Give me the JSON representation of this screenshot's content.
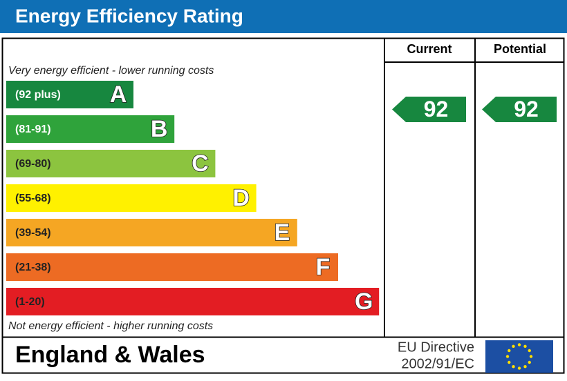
{
  "title": "Energy Efficiency Rating",
  "columns": {
    "current": "Current",
    "potential": "Potential"
  },
  "top_note": "Very energy efficient - lower running costs",
  "bottom_note": "Not energy efficient - higher running costs",
  "bands": [
    {
      "range": "(92 plus)",
      "letter": "A",
      "color": "#17873f",
      "label_color": "#ffffff"
    },
    {
      "range": "(81-91)",
      "letter": "B",
      "color": "#2fa33b",
      "label_color": "#ffffff"
    },
    {
      "range": "(69-80)",
      "letter": "C",
      "color": "#8cc43f",
      "label_color": "#222222"
    },
    {
      "range": "(55-68)",
      "letter": "D",
      "color": "#fff100",
      "label_color": "#222222"
    },
    {
      "range": "(39-54)",
      "letter": "E",
      "color": "#f5a623",
      "label_color": "#222222"
    },
    {
      "range": "(21-38)",
      "letter": "F",
      "color": "#ed6b23",
      "label_color": "#222222"
    },
    {
      "range": "(1-20)",
      "letter": "G",
      "color": "#e31d23",
      "label_color": "#222222"
    }
  ],
  "current": {
    "value": "92",
    "color": "#17873f"
  },
  "potential": {
    "value": "92",
    "color": "#17873f"
  },
  "footer": {
    "region": "England & Wales",
    "directive_line1": "EU Directive",
    "directive_line2": "2002/91/EC"
  }
}
